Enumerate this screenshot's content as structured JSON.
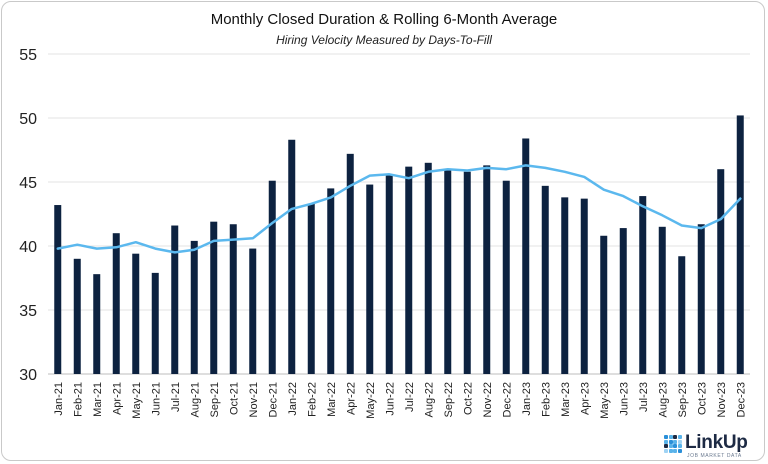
{
  "chart_data": {
    "type": "bar+line",
    "title": "Monthly Closed Duration & Rolling 6-Month Average",
    "subtitle": "Hiring Velocity Measured by Days-To-Fill",
    "ylim": [
      30,
      55
    ],
    "yticks": [
      30,
      35,
      40,
      45,
      50,
      55
    ],
    "grid": true,
    "categories": [
      "Jan-21",
      "Feb-21",
      "Mar-21",
      "Apr-21",
      "May-21",
      "Jun-21",
      "Jul-21",
      "Aug-21",
      "Sep-21",
      "Oct-21",
      "Nov-21",
      "Dec-21",
      "Jan-22",
      "Feb-22",
      "Mar-22",
      "Apr-22",
      "May-22",
      "Jun-22",
      "Jul-22",
      "Aug-22",
      "Sep-22",
      "Oct-22",
      "Nov-22",
      "Dec-22",
      "Jan-23",
      "Feb-23",
      "Mar-23",
      "Apr-23",
      "May-23",
      "Jun-23",
      "Jul-23",
      "Aug-23",
      "Sep-23",
      "Oct-23",
      "Nov-23",
      "Dec-23"
    ],
    "series": [
      {
        "type": "bar",
        "color": "#0d2240",
        "values": [
          43.2,
          39.0,
          37.8,
          41.0,
          39.4,
          37.9,
          41.6,
          40.4,
          41.9,
          41.7,
          39.8,
          45.1,
          48.3,
          43.3,
          44.5,
          47.2,
          44.8,
          45.6,
          46.2,
          46.5,
          46.0,
          45.8,
          46.3,
          45.1,
          48.4,
          44.7,
          43.8,
          43.7,
          40.8,
          41.4,
          43.9,
          41.5,
          39.2,
          41.7,
          46.0,
          50.2
        ]
      },
      {
        "type": "line",
        "color": "#5bb8ee",
        "values": [
          39.8,
          40.1,
          39.8,
          39.9,
          40.3,
          39.8,
          39.5,
          39.7,
          40.4,
          40.5,
          40.6,
          41.8,
          42.9,
          43.3,
          43.8,
          44.7,
          45.5,
          45.6,
          45.3,
          45.8,
          46.0,
          45.9,
          46.1,
          46.0,
          46.3,
          46.1,
          45.8,
          45.4,
          44.4,
          43.9,
          43.1,
          42.4,
          41.6,
          41.4,
          42.1,
          43.7
        ]
      }
    ]
  },
  "logo": {
    "name": "LinkUp",
    "tagline": "JOB MARKET DATA",
    "colors": [
      "#2a8fd8",
      "#59b3ea",
      "#1d2a44",
      "#9fd3f4"
    ]
  }
}
